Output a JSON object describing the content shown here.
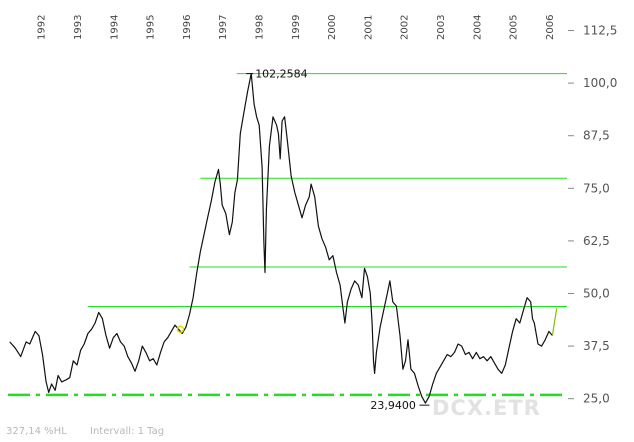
{
  "chart_data": {
    "type": "line",
    "symbol": "DCX.ETR",
    "footer": {
      "performance": "327,14 %HL",
      "interval": "Intervall: 1 Tag"
    },
    "y_axis": {
      "side": "right",
      "ylim": [
        23.5,
        115
      ],
      "ticks": [
        "112,5",
        "100,0",
        "87,5",
        "75,0",
        "62,5",
        "50,0",
        "37,5",
        "25,0"
      ],
      "tick_values": [
        112.5,
        100,
        87.5,
        75,
        62.5,
        50,
        37.5,
        25
      ]
    },
    "x_axis": {
      "side": "top",
      "xlim": [
        1991.6,
        2007.0
      ],
      "ticks": [
        "1992",
        "1993",
        "1994",
        "1995",
        "1996",
        "1997",
        "1998",
        "1999",
        "2000",
        "2001",
        "2002",
        "2003",
        "2004",
        "2005",
        "2006"
      ]
    },
    "annotations": {
      "high": {
        "label": "102,2584",
        "value": 102.26,
        "x": 1998.3
      },
      "low": {
        "label": "23,9400",
        "value": 23.94,
        "x": 2003.1
      }
    },
    "horizontal_lines": [
      {
        "value": 102.26,
        "x_start": 1997.9,
        "style": "solid",
        "color": "#22dd22"
      },
      {
        "value": 77.4,
        "x_start": 1996.9,
        "style": "solid",
        "color": "#22dd22"
      },
      {
        "value": 56.3,
        "x_start": 1996.6,
        "style": "solid",
        "color": "#22dd22"
      },
      {
        "value": 46.9,
        "x_start": 1993.8,
        "style": "solid",
        "color": "#22dd22"
      },
      {
        "value": 25.9,
        "x_start": 1991.6,
        "style": "dashdot",
        "color": "#22dd22"
      }
    ],
    "series": [
      {
        "color": "#111111",
        "points": [
          [
            1991.65,
            38.5
          ],
          [
            1991.8,
            37.0
          ],
          [
            1991.95,
            35.0
          ],
          [
            1992.1,
            38.5
          ],
          [
            1992.2,
            38.0
          ],
          [
            1992.35,
            41.0
          ],
          [
            1992.45,
            40.0
          ],
          [
            1992.55,
            35.5
          ],
          [
            1992.65,
            29.0
          ],
          [
            1992.72,
            26.5
          ],
          [
            1992.8,
            28.5
          ],
          [
            1992.9,
            27.0
          ],
          [
            1992.98,
            30.5
          ],
          [
            1993.08,
            29.0
          ],
          [
            1993.2,
            29.5
          ],
          [
            1993.3,
            30.0
          ],
          [
            1993.4,
            34.0
          ],
          [
            1993.5,
            33.0
          ],
          [
            1993.6,
            36.5
          ],
          [
            1993.7,
            38.0
          ],
          [
            1993.8,
            40.5
          ],
          [
            1993.9,
            41.5
          ],
          [
            1994.0,
            43.0
          ],
          [
            1994.1,
            45.5
          ],
          [
            1994.2,
            44.0
          ],
          [
            1994.3,
            40.0
          ],
          [
            1994.4,
            37.0
          ],
          [
            1994.5,
            39.5
          ],
          [
            1994.6,
            40.5
          ],
          [
            1994.7,
            38.5
          ],
          [
            1994.8,
            37.5
          ],
          [
            1994.9,
            35.0
          ],
          [
            1995.0,
            33.5
          ],
          [
            1995.1,
            31.5
          ],
          [
            1995.2,
            34.0
          ],
          [
            1995.3,
            37.5
          ],
          [
            1995.4,
            36.0
          ],
          [
            1995.5,
            34.0
          ],
          [
            1995.6,
            34.5
          ],
          [
            1995.7,
            33.0
          ],
          [
            1995.8,
            36.0
          ],
          [
            1995.9,
            38.5
          ],
          [
            1996.0,
            39.5
          ],
          [
            1996.1,
            41.0
          ],
          [
            1996.2,
            42.5
          ],
          [
            1996.3,
            41.5
          ],
          [
            1996.4,
            40.5
          ],
          [
            1996.5,
            42.0
          ],
          [
            1996.6,
            45.0
          ],
          [
            1996.7,
            49.0
          ],
          [
            1996.8,
            55.0
          ],
          [
            1996.9,
            60.0
          ],
          [
            1997.0,
            64.0
          ],
          [
            1997.1,
            68.0
          ],
          [
            1997.2,
            72.0
          ],
          [
            1997.3,
            76.5
          ],
          [
            1997.4,
            79.5
          ],
          [
            1997.45,
            76.0
          ],
          [
            1997.5,
            71.0
          ],
          [
            1997.6,
            69.0
          ],
          [
            1997.7,
            64.0
          ],
          [
            1997.78,
            67.0
          ],
          [
            1997.85,
            74.0
          ],
          [
            1997.92,
            77.0
          ],
          [
            1998.0,
            88.0
          ],
          [
            1998.1,
            93.0
          ],
          [
            1998.2,
            98.0
          ],
          [
            1998.3,
            102.26
          ],
          [
            1998.38,
            95.0
          ],
          [
            1998.45,
            92.0
          ],
          [
            1998.52,
            90.0
          ],
          [
            1998.6,
            80.0
          ],
          [
            1998.65,
            62.0
          ],
          [
            1998.68,
            55.0
          ],
          [
            1998.72,
            70.0
          ],
          [
            1998.8,
            85.0
          ],
          [
            1998.9,
            92.0
          ],
          [
            1999.0,
            90.0
          ],
          [
            1999.05,
            88.0
          ],
          [
            1999.1,
            82.0
          ],
          [
            1999.15,
            91.0
          ],
          [
            1999.22,
            92.0
          ],
          [
            1999.3,
            86.0
          ],
          [
            1999.4,
            78.0
          ],
          [
            1999.5,
            74.0
          ],
          [
            1999.6,
            71.0
          ],
          [
            1999.7,
            68.0
          ],
          [
            1999.8,
            71.0
          ],
          [
            1999.9,
            73.0
          ],
          [
            1999.95,
            76.0
          ],
          [
            2000.05,
            73.0
          ],
          [
            2000.15,
            66.0
          ],
          [
            2000.25,
            63.0
          ],
          [
            2000.35,
            61.0
          ],
          [
            2000.45,
            58.0
          ],
          [
            2000.55,
            59.0
          ],
          [
            2000.65,
            55.0
          ],
          [
            2000.75,
            52.0
          ],
          [
            2000.82,
            47.0
          ],
          [
            2000.88,
            43.0
          ],
          [
            2000.95,
            48.0
          ],
          [
            2001.05,
            51.0
          ],
          [
            2001.15,
            53.0
          ],
          [
            2001.25,
            52.0
          ],
          [
            2001.35,
            49.0
          ],
          [
            2001.42,
            56.0
          ],
          [
            2001.5,
            54.0
          ],
          [
            2001.58,
            50.0
          ],
          [
            2001.63,
            43.0
          ],
          [
            2001.67,
            34.0
          ],
          [
            2001.7,
            31.0
          ],
          [
            2001.75,
            36.0
          ],
          [
            2001.85,
            42.0
          ],
          [
            2001.95,
            46.0
          ],
          [
            2002.05,
            50.0
          ],
          [
            2002.12,
            53.0
          ],
          [
            2002.2,
            48.0
          ],
          [
            2002.3,
            47.0
          ],
          [
            2002.4,
            40.0
          ],
          [
            2002.48,
            32.0
          ],
          [
            2002.55,
            34.0
          ],
          [
            2002.62,
            39.0
          ],
          [
            2002.7,
            32.0
          ],
          [
            2002.8,
            31.0
          ],
          [
            2002.9,
            28.0
          ],
          [
            2003.0,
            25.5
          ],
          [
            2003.1,
            23.94
          ],
          [
            2003.2,
            25.5
          ],
          [
            2003.3,
            28.5
          ],
          [
            2003.4,
            31.0
          ],
          [
            2003.5,
            32.5
          ],
          [
            2003.6,
            34.0
          ],
          [
            2003.7,
            35.5
          ],
          [
            2003.8,
            35.0
          ],
          [
            2003.9,
            36.0
          ],
          [
            2004.0,
            38.0
          ],
          [
            2004.1,
            37.5
          ],
          [
            2004.2,
            35.5
          ],
          [
            2004.3,
            36.0
          ],
          [
            2004.4,
            34.5
          ],
          [
            2004.5,
            36.0
          ],
          [
            2004.6,
            34.5
          ],
          [
            2004.7,
            35.0
          ],
          [
            2004.8,
            34.0
          ],
          [
            2004.9,
            35.0
          ],
          [
            2005.0,
            33.5
          ],
          [
            2005.1,
            32.0
          ],
          [
            2005.2,
            31.0
          ],
          [
            2005.3,
            33.0
          ],
          [
            2005.4,
            37.0
          ],
          [
            2005.5,
            41.0
          ],
          [
            2005.6,
            44.0
          ],
          [
            2005.7,
            43.0
          ],
          [
            2005.8,
            46.0
          ],
          [
            2005.9,
            49.0
          ],
          [
            2006.0,
            48.0
          ],
          [
            2006.05,
            44.0
          ],
          [
            2006.1,
            43.0
          ],
          [
            2006.2,
            38.0
          ],
          [
            2006.3,
            37.5
          ],
          [
            2006.4,
            39.0
          ],
          [
            2006.5,
            41.0
          ],
          [
            2006.6,
            40.0
          ]
        ]
      },
      {
        "color": "#88bb00",
        "points": [
          [
            2006.6,
            40.0
          ],
          [
            2006.65,
            43.0
          ],
          [
            2006.72,
            46.5
          ]
        ]
      }
    ],
    "highlights": [
      {
        "x": 1996.35,
        "y": 41.5,
        "color": "#dddd00"
      }
    ]
  }
}
